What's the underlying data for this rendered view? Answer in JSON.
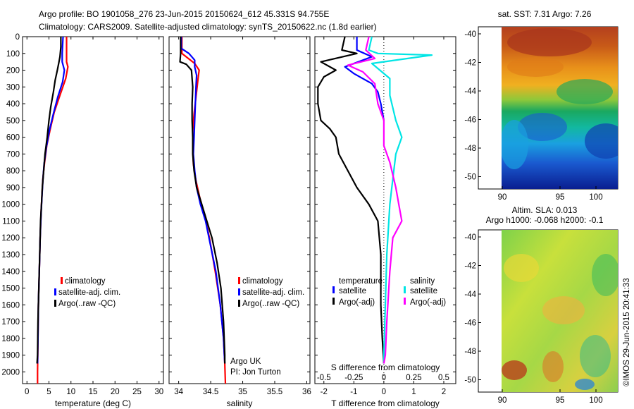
{
  "header": {
    "line1": "Argo profile: BO 1901058_276 23-Jun-2015 20150624_612 45.331S 94.755E",
    "line2": "Climatology: CARS2009. Satellite-adjusted climatology: synTS_20150622.nc (1.8d earlier)"
  },
  "colors": {
    "climatology": "#ff0000",
    "satellite": "#0000ff",
    "argo": "#000000",
    "satellite_s": "#00e5e5",
    "argo_s": "#ff00ff"
  },
  "chart_data": [
    {
      "id": "temperature",
      "type": "line",
      "xlabel": "temperature (deg C)",
      "xlim": [
        -1,
        31
      ],
      "xticks": [
        0,
        5,
        10,
        15,
        20,
        25,
        30
      ],
      "ylim": [
        2070,
        0
      ],
      "yticks": [
        0,
        100,
        200,
        300,
        400,
        500,
        600,
        700,
        800,
        900,
        1000,
        1100,
        1200,
        1300,
        1400,
        1500,
        1600,
        1700,
        1800,
        1900,
        2000
      ],
      "legend": [
        "climatology",
        "satellite-adj. clim.",
        "Argo(..raw -QC)"
      ],
      "series": [
        {
          "name": "climatology",
          "color": "#ff0000",
          "points": [
            [
              9.0,
              0
            ],
            [
              9.0,
              100
            ],
            [
              9.0,
              150
            ],
            [
              9.3,
              180
            ],
            [
              8.8,
              250
            ],
            [
              7.5,
              350
            ],
            [
              6.2,
              450
            ],
            [
              5.3,
              550
            ],
            [
              4.5,
              650
            ],
            [
              4.0,
              750
            ],
            [
              3.6,
              850
            ],
            [
              3.4,
              950
            ],
            [
              3.2,
              1050
            ],
            [
              3.0,
              1200
            ],
            [
              2.8,
              1400
            ],
            [
              2.6,
              1600
            ],
            [
              2.5,
              1800
            ],
            [
              2.4,
              2000
            ],
            [
              2.4,
              2070
            ]
          ]
        },
        {
          "name": "satellite-adj. clim.",
          "color": "#0000ff",
          "points": [
            [
              8.2,
              0
            ],
            [
              8.0,
              100
            ],
            [
              8.0,
              150
            ],
            [
              8.5,
              200
            ],
            [
              8.1,
              270
            ],
            [
              7.0,
              360
            ],
            [
              6.0,
              460
            ],
            [
              5.1,
              560
            ],
            [
              4.4,
              660
            ],
            [
              3.9,
              760
            ],
            [
              3.6,
              860
            ],
            [
              3.4,
              960
            ],
            [
              3.2,
              1060
            ],
            [
              3.0,
              1200
            ],
            [
              2.8,
              1400
            ],
            [
              2.6,
              1600
            ],
            [
              2.5,
              1800
            ],
            [
              2.4,
              1950
            ]
          ]
        },
        {
          "name": "Argo(..raw -QC)",
          "color": "#000000",
          "points": [
            [
              7.7,
              0
            ],
            [
              7.7,
              60
            ],
            [
              7.5,
              120
            ],
            [
              7.2,
              160
            ],
            [
              6.9,
              200
            ],
            [
              6.4,
              260
            ],
            [
              6.0,
              330
            ],
            [
              5.4,
              420
            ],
            [
              5.0,
              500
            ],
            [
              4.6,
              600
            ],
            [
              4.1,
              700
            ],
            [
              3.8,
              800
            ],
            [
              3.5,
              900
            ],
            [
              3.3,
              1000
            ],
            [
              3.1,
              1100
            ],
            [
              2.9,
              1300
            ],
            [
              2.7,
              1500
            ],
            [
              2.5,
              1700
            ],
            [
              2.4,
              1900
            ],
            [
              2.3,
              1950
            ]
          ]
        }
      ]
    },
    {
      "id": "salinity",
      "type": "line",
      "xlabel": "salinity",
      "xlim": [
        33.85,
        36.05
      ],
      "xticks": [
        34,
        34.5,
        35,
        35.5,
        36
      ],
      "ylim": [
        2070,
        0
      ],
      "legend": [
        "climatology",
        "satellite-adj. clim.",
        "Argo(..raw -QC)"
      ],
      "annotation": [
        "Argo UK",
        "PI: Jon Turton"
      ],
      "series": [
        {
          "name": "climatology",
          "color": "#ff0000",
          "points": [
            [
              34.05,
              0
            ],
            [
              34.05,
              100
            ],
            [
              34.25,
              160
            ],
            [
              34.32,
              200
            ],
            [
              34.3,
              260
            ],
            [
              34.27,
              360
            ],
            [
              34.24,
              460
            ],
            [
              34.22,
              560
            ],
            [
              34.22,
              660
            ],
            [
              34.23,
              760
            ],
            [
              34.27,
              860
            ],
            [
              34.33,
              960
            ],
            [
              34.4,
              1060
            ],
            [
              34.48,
              1200
            ],
            [
              34.57,
              1400
            ],
            [
              34.65,
              1600
            ],
            [
              34.7,
              1800
            ],
            [
              34.72,
              1950
            ],
            [
              34.73,
              2070
            ]
          ]
        },
        {
          "name": "satellite-adj. clim.",
          "color": "#0000ff",
          "points": [
            [
              34.04,
              0
            ],
            [
              34.04,
              70
            ],
            [
              34.16,
              100
            ],
            [
              34.25,
              140
            ],
            [
              34.25,
              180
            ],
            [
              34.28,
              230
            ],
            [
              34.27,
              300
            ],
            [
              34.26,
              400
            ],
            [
              34.25,
              500
            ],
            [
              34.24,
              600
            ],
            [
              34.23,
              700
            ],
            [
              34.25,
              800
            ],
            [
              34.28,
              900
            ],
            [
              34.34,
              1000
            ],
            [
              34.42,
              1100
            ],
            [
              34.5,
              1250
            ],
            [
              34.58,
              1400
            ],
            [
              34.65,
              1600
            ],
            [
              34.7,
              1800
            ],
            [
              34.72,
              1950
            ]
          ]
        },
        {
          "name": "Argo(..raw -QC)",
          "color": "#000000",
          "points": [
            [
              34.03,
              0
            ],
            [
              34.03,
              100
            ],
            [
              34.02,
              150
            ],
            [
              34.12,
              165
            ],
            [
              34.2,
              200
            ],
            [
              34.22,
              300
            ],
            [
              34.21,
              400
            ],
            [
              34.21,
              500
            ],
            [
              34.22,
              600
            ],
            [
              34.22,
              700
            ],
            [
              34.24,
              800
            ],
            [
              34.28,
              900
            ],
            [
              34.36,
              1000
            ],
            [
              34.44,
              1100
            ],
            [
              34.52,
              1200
            ],
            [
              34.6,
              1350
            ],
            [
              34.66,
              1500
            ],
            [
              34.7,
              1700
            ],
            [
              34.72,
              1900
            ],
            [
              34.72,
              1950
            ]
          ]
        }
      ]
    },
    {
      "id": "difference",
      "type": "line",
      "xlabel": "T difference from climatology",
      "xlabel_top": "S difference from climatology",
      "xlim": [
        -2.3,
        2.4
      ],
      "xticks_T": [
        -2,
        -1,
        0,
        1,
        2
      ],
      "xticks_S": [
        -0.5,
        -0.25,
        0,
        0.25,
        0.5
      ],
      "s_scale": 4,
      "ylim": [
        2070,
        0
      ],
      "legend_titles": [
        "temperature",
        "salinity"
      ],
      "legend": [
        "satellite",
        "Argo(-adj)",
        "satellite",
        "Argo(-adj)"
      ],
      "series": [
        {
          "name": "temperature satellite",
          "color": "#0000ff",
          "points": [
            [
              -0.9,
              0
            ],
            [
              -0.9,
              80
            ],
            [
              -0.4,
              120
            ],
            [
              -1.3,
              180
            ],
            [
              -1.0,
              220
            ],
            [
              -0.4,
              280
            ],
            [
              -0.2,
              330
            ],
            [
              -0.1,
              400
            ],
            [
              0.0,
              500
            ]
          ]
        },
        {
          "name": "temperature Argo(-adj)",
          "color": "#000000",
          "points": [
            [
              -1.3,
              0
            ],
            [
              -1.4,
              80
            ],
            [
              -0.9,
              100
            ],
            [
              -2.1,
              150
            ],
            [
              -1.6,
              200
            ],
            [
              -2.0,
              240
            ],
            [
              -2.2,
              300
            ],
            [
              -2.2,
              400
            ],
            [
              -2.1,
              500
            ],
            [
              -1.8,
              550
            ],
            [
              -1.6,
              600
            ],
            [
              -1.5,
              700
            ],
            [
              -1.2,
              800
            ],
            [
              -0.9,
              900
            ],
            [
              -0.5,
              1000
            ],
            [
              -0.2,
              1100
            ],
            [
              -0.1,
              1300
            ],
            [
              -0.1,
              1600
            ],
            [
              -0.05,
              1800
            ],
            [
              0.0,
              1950
            ]
          ]
        },
        {
          "name": "salinity satellite",
          "color": "#00e5e5",
          "points": [
            [
              -0.4,
              0
            ],
            [
              -0.5,
              80
            ],
            [
              -0.2,
              100
            ],
            [
              1.6,
              110
            ],
            [
              -0.4,
              160
            ],
            [
              0.2,
              250
            ],
            [
              0.2,
              350
            ],
            [
              0.4,
              500
            ],
            [
              0.6,
              600
            ],
            [
              0.4,
              700
            ],
            [
              0.3,
              850
            ],
            [
              0.2,
              1000
            ],
            [
              0.1,
              1300
            ],
            [
              0.05,
              1600
            ],
            [
              0.0,
              1900
            ],
            [
              0.0,
              1950
            ]
          ]
        },
        {
          "name": "salinity Argo(-adj)",
          "color": "#ff00ff",
          "points": [
            [
              -0.5,
              0
            ],
            [
              -0.6,
              80
            ],
            [
              -0.3,
              130
            ],
            [
              -1.2,
              170
            ],
            [
              -0.7,
              210
            ],
            [
              -0.3,
              280
            ],
            [
              -0.2,
              400
            ],
            [
              0.0,
              500
            ],
            [
              0.0,
              650
            ],
            [
              0.2,
              750
            ],
            [
              0.4,
              900
            ],
            [
              0.5,
              1000
            ],
            [
              0.6,
              1100
            ],
            [
              0.3,
              1200
            ],
            [
              0.2,
              1400
            ],
            [
              0.1,
              1700
            ],
            [
              0.05,
              1900
            ],
            [
              0.0,
              1950
            ]
          ]
        }
      ]
    }
  ],
  "maps": [
    {
      "id": "sst",
      "title": "sat. SST: 7.31 Argo: 7.26",
      "xticks": [
        "90",
        "95",
        "100"
      ],
      "yticks": [
        "-40",
        "-42",
        "-44",
        "-46",
        "-48",
        "-50"
      ]
    },
    {
      "id": "sla",
      "title1": "Altim. SLA: 0.013",
      "title2": "Argo h1000: -0.068 h2000: -0.1",
      "xticks": [
        "90",
        "95",
        "100"
      ],
      "yticks": [
        "-40",
        "-42",
        "-44",
        "-46",
        "-48",
        "-50"
      ]
    }
  ],
  "footer": {
    "credit": "©IMOS 29-Jun-2015 20:41:33"
  }
}
